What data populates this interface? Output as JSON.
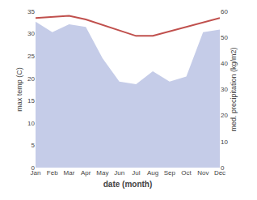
{
  "chart_data": {
    "type": "line",
    "categories": [
      "Jan",
      "Feb",
      "Mar",
      "Apr",
      "May",
      "Jun",
      "Jul",
      "Aug",
      "Sep",
      "Oct",
      "Nov",
      "Dec"
    ],
    "xlabel": "date (month)",
    "ylabel": "max temp (C)",
    "y2label": "med. precipitation (kg/m2)",
    "series": [
      {
        "type": "area",
        "axis": "y2",
        "color": "#c5cce8",
        "values": [
          56.0,
          52.0,
          55.0,
          54.0,
          42.0,
          33.0,
          32.0,
          37.0,
          33.0,
          35.0,
          52.0,
          53.0
        ]
      },
      {
        "type": "line",
        "axis": "y",
        "color": "#c0504d",
        "values": [
          33.5,
          33.8,
          34.0,
          33.2,
          32.0,
          30.8,
          29.5,
          29.5,
          30.5,
          31.5,
          32.5,
          33.5
        ]
      }
    ],
    "ylim": [
      0,
      35
    ],
    "yticks": [
      0,
      5,
      10,
      15,
      20,
      25,
      30,
      35
    ],
    "y2lim": [
      0,
      60
    ],
    "y2ticks": [
      0,
      10,
      20,
      30,
      40,
      50,
      60
    ],
    "grid": false
  }
}
